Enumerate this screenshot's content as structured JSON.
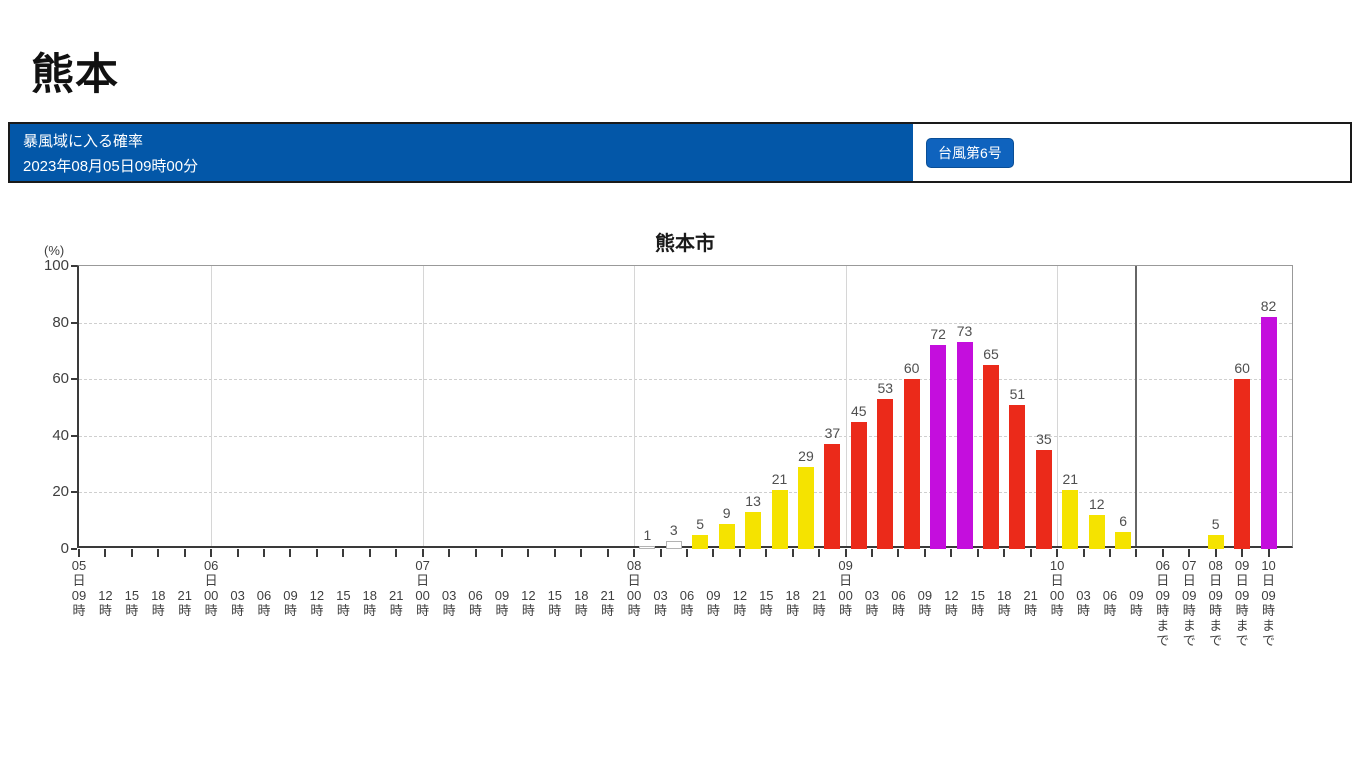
{
  "header": {
    "title": "熊本"
  },
  "banner": {
    "title": "暴風域に入る確率",
    "datetime": "2023年08月05日09時00分",
    "typhoon_button": "台風第6号",
    "bar_color": "#0357a8",
    "button_color": "#0f63be"
  },
  "chart_data": {
    "type": "bar",
    "title": "熊本市",
    "unit_label": "(%)",
    "ylabel": "(%)",
    "ylim": [
      0,
      100
    ],
    "yticks": [
      0,
      20,
      40,
      60,
      80,
      100
    ],
    "grid_dashed_at": [
      20,
      40,
      60,
      80
    ],
    "legend": "none",
    "x_note": "3-hourly probability of entering storm wind area; bars drawn between consecutive time ticks; right section shows cumulative totals",
    "main_ticks": [
      "05日09時",
      "12時",
      "15時",
      "18時",
      "21時",
      "06日00時",
      "03時",
      "06時",
      "09時",
      "12時",
      "15時",
      "18時",
      "21時",
      "07日00時",
      "03時",
      "06時",
      "09時",
      "12時",
      "15時",
      "18時",
      "21時",
      "08日00時",
      "03時",
      "06時",
      "09時",
      "12時",
      "15時",
      "18時",
      "21時",
      "09日00時",
      "03時",
      "06時",
      "09時",
      "12時",
      "15時",
      "18時",
      "21時",
      "10日00時",
      "03時",
      "06時",
      "09時"
    ],
    "day_boundary_ticks": [
      "06日00時",
      "07日00時",
      "08日00時",
      "09日00時",
      "10日00時"
    ],
    "main_bars": [
      {
        "tick_index": 21,
        "value": 1,
        "color": "white"
      },
      {
        "tick_index": 22,
        "value": 3,
        "color": "white"
      },
      {
        "tick_index": 23,
        "value": 5,
        "color": "yellow"
      },
      {
        "tick_index": 24,
        "value": 9,
        "color": "yellow"
      },
      {
        "tick_index": 25,
        "value": 13,
        "color": "yellow"
      },
      {
        "tick_index": 26,
        "value": 21,
        "color": "yellow"
      },
      {
        "tick_index": 27,
        "value": 29,
        "color": "yellow"
      },
      {
        "tick_index": 28,
        "value": 37,
        "color": "red"
      },
      {
        "tick_index": 29,
        "value": 45,
        "color": "red"
      },
      {
        "tick_index": 30,
        "value": 53,
        "color": "red"
      },
      {
        "tick_index": 31,
        "value": 60,
        "color": "red"
      },
      {
        "tick_index": 32,
        "value": 72,
        "color": "purple"
      },
      {
        "tick_index": 33,
        "value": 73,
        "color": "purple"
      },
      {
        "tick_index": 34,
        "value": 65,
        "color": "red"
      },
      {
        "tick_index": 35,
        "value": 51,
        "color": "red"
      },
      {
        "tick_index": 36,
        "value": 35,
        "color": "red"
      },
      {
        "tick_index": 37,
        "value": 21,
        "color": "yellow"
      },
      {
        "tick_index": 38,
        "value": 12,
        "color": "yellow"
      },
      {
        "tick_index": 39,
        "value": 6,
        "color": "yellow"
      }
    ],
    "summary_ticks": [
      "06日09時まで",
      "07日09時まで",
      "08日09時まで",
      "09日09時まで",
      "10日09時まで"
    ],
    "summary_bars": [
      {
        "tick_index": 2,
        "value": 5,
        "color": "yellow"
      },
      {
        "tick_index": 3,
        "value": 60,
        "color": "red"
      },
      {
        "tick_index": 4,
        "value": 82,
        "color": "purple"
      }
    ],
    "palette": {
      "white": "#ffffff",
      "yellow": "#f5e300",
      "red": "#eb2a1a",
      "purple": "#c40edd"
    }
  }
}
